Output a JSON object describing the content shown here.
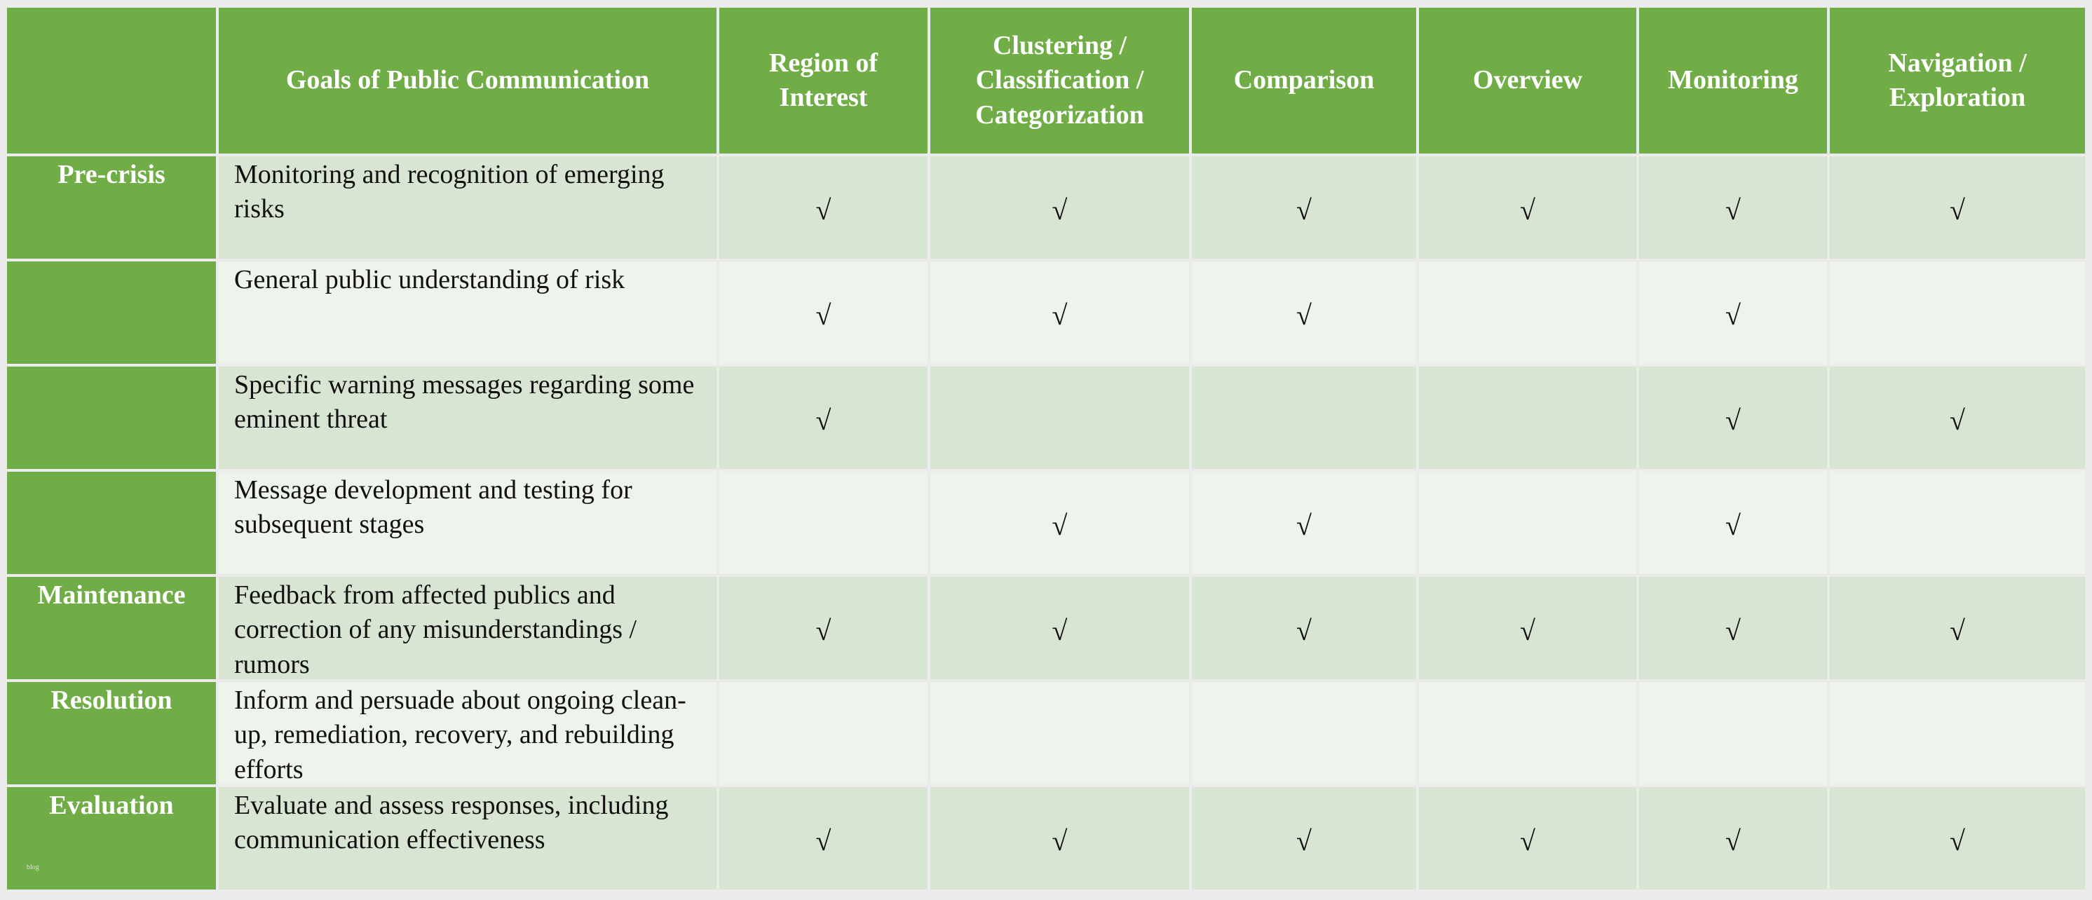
{
  "table": {
    "header": [
      null,
      "Goals of Public Communication",
      "Region of Interest",
      "Clustering / Classification / Categorization",
      "Comparison",
      "Overview",
      "Monitoring",
      "Navigation / Exploration"
    ],
    "rows": [
      {
        "stage": "Pre-crisis",
        "goal": "Monitoring and recognition of emerging risks",
        "marks": [
          "√",
          "√",
          "√",
          "√",
          "√",
          "√"
        ]
      },
      {
        "stage": null,
        "goal": "General public understanding of risk",
        "marks": [
          "√",
          "√",
          "√",
          null,
          "√",
          null
        ]
      },
      {
        "stage": null,
        "goal": "Specific warning messages regarding some eminent threat",
        "marks": [
          "√",
          null,
          null,
          null,
          "√",
          "√"
        ]
      },
      {
        "stage": null,
        "goal": "Message development and testing for subsequent stages",
        "marks": [
          null,
          "√",
          "√",
          null,
          "√",
          null
        ]
      },
      {
        "stage": "Maintenance",
        "goal": "Feedback from affected publics and correction of any misunderstandings / rumors",
        "marks": [
          "√",
          "√",
          "√",
          "√",
          "√",
          "√"
        ]
      },
      {
        "stage": "Resolution",
        "goal": "Inform and persuade about ongoing clean-up, remediation, recovery, and rebuilding efforts",
        "marks": [
          null,
          null,
          null,
          null,
          null,
          null
        ]
      },
      {
        "stage": "Evaluation",
        "goal": "Evaluate and assess responses, including communication effectiveness",
        "marks": [
          "√",
          "√",
          "√",
          "√",
          "√",
          "√"
        ]
      }
    ]
  },
  "footnote": "blog"
}
